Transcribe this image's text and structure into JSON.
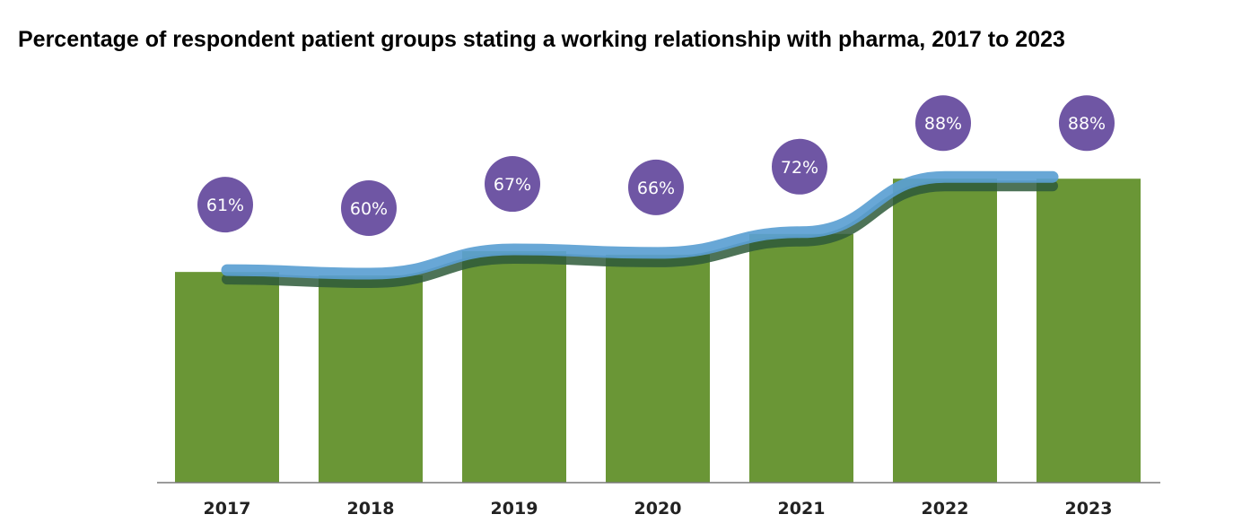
{
  "chart_data": {
    "type": "bar",
    "title": "Percentage of respondent patient groups stating a working relationship with pharma, 2017 to 2023",
    "categories": [
      "2017",
      "2018",
      "2019",
      "2020",
      "2021",
      "2022",
      "2023"
    ],
    "values": [
      61,
      60,
      67,
      66,
      72,
      88,
      88
    ],
    "value_labels": [
      "61%",
      "60%",
      "67%",
      "66%",
      "72%",
      "88%",
      "88%"
    ],
    "xlabel": "",
    "ylabel": "",
    "ylim": [
      0,
      100
    ],
    "grid": false,
    "overlay": "line",
    "colors": {
      "bar": "#6a9636",
      "line": "#5b9fd2",
      "badge": "#6f56a4"
    }
  }
}
